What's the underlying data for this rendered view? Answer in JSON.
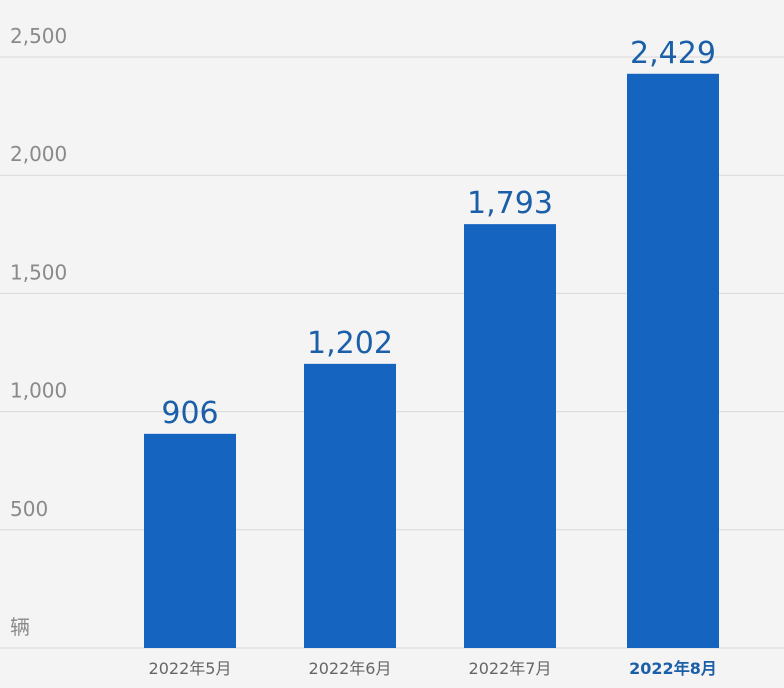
{
  "chart_data": {
    "type": "bar",
    "categories": [
      "2022年5月",
      "2022年6月",
      "2022年7月",
      "2022年8月"
    ],
    "values": [
      906,
      1202,
      1793,
      2429
    ],
    "value_labels": [
      "906",
      "1,202",
      "1,793",
      "2,429"
    ],
    "color": "#1565c0",
    "highlight_category": 3,
    "ylim": [
      0,
      2500
    ],
    "yticks": [
      {
        "value": 0,
        "label": "辆"
      },
      500,
      {
        "value": 1000,
        "label": "1,000"
      },
      {
        "value": 1500,
        "label": "1,500"
      },
      {
        "value": 2000,
        "label": "2,000"
      },
      {
        "value": 2500,
        "label": "2,500"
      }
    ],
    "grid": true
  }
}
